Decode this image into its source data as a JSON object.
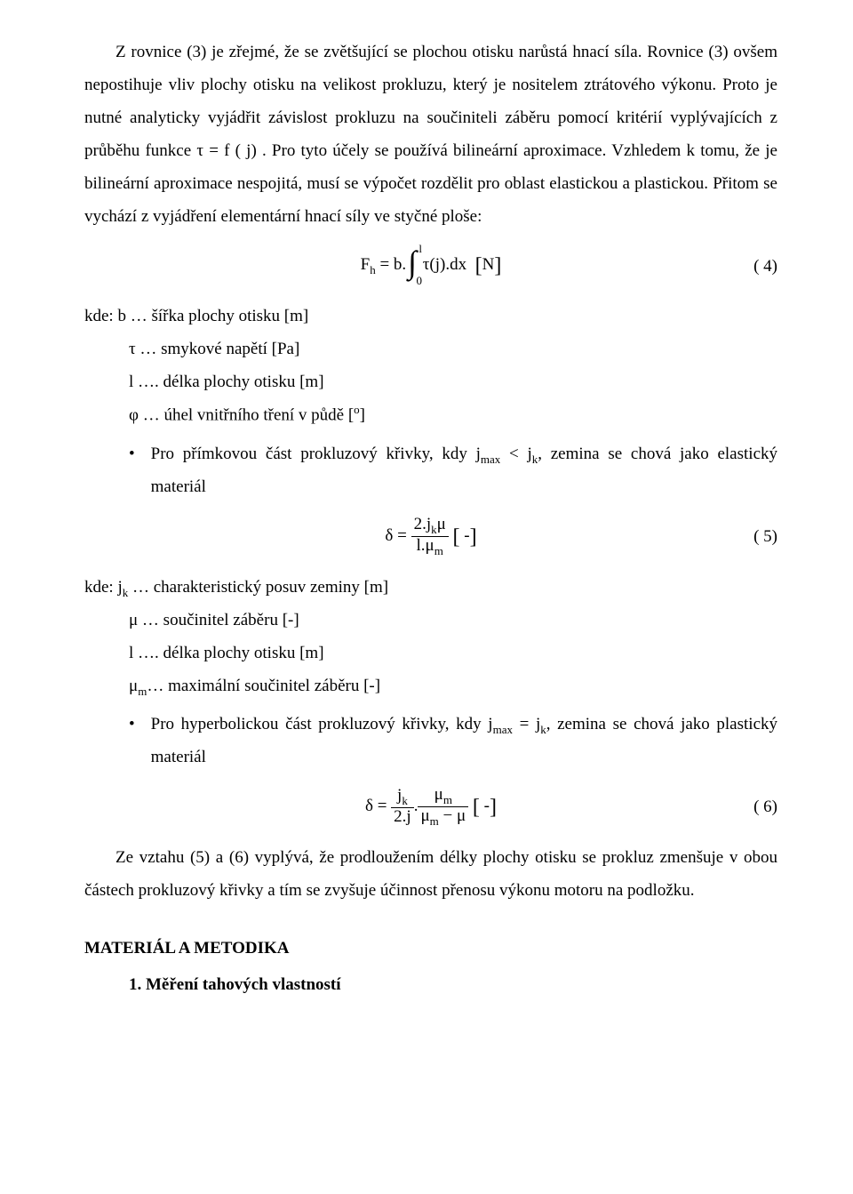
{
  "para1": "Z rovnice (3) je zřejmé, že se zvětšující se plochou otisku narůstá hnací síla. Rovnice (3) ovšem nepostihuje vliv plochy otisku na velikost prokluzu, který je nositelem ztrátového výkonu. Proto je nutné analyticky vyjádřit závislost prokluzu na součiniteli záběru pomocí kritérií vyplývajících z průběhu funkce τ = f ( j) . Pro tyto účely se používá bilineární aproximace. Vzhledem k tomu, že je bilineární aproximace nespojitá, musí se výpočet rozdělit pro oblast elastickou a plastickou. Přitom se vychází z vyjádření elementární hnací síly ve styčné ploše:",
  "eq4_left": "F",
  "eq4_sub": "h",
  "eq4_eq": " = b.",
  "eq4_int_upper": "l",
  "eq4_int_lower": "0",
  "eq4_after_int": "τ(j).dx ",
  "eq4_unit": "N",
  "eq4_num": "( 4)",
  "var_b": "kde: b … šířka plochy otisku [m]",
  "var_tau": "τ … smykové napětí [Pa]",
  "var_l": "l …. délka plochy otisku [m]",
  "var_phi": "φ … úhel vnitřního tření v půdě [",
  "var_phi_sup": "o",
  "var_phi_end": "]",
  "bullet1_start": "Pro přímkovou část prokluzový křivky, kdy j",
  "bullet1_sub1": "max",
  "bullet1_mid": " < j",
  "bullet1_sub2": "k",
  "bullet1_end": ", zemina se chová jako elastický materiál",
  "eq5_delta": "δ = ",
  "eq5_num_top": "2.j",
  "eq5_num_sub": "k",
  "eq5_num_end": "μ",
  "eq5_den_start": "l.μ",
  "eq5_den_sub": "m",
  "eq5_unit": " -",
  "eq5_num": "( 5)",
  "var_jk": "kde: j",
  "var_jk_sub": "k",
  "var_jk_end": " … charakteristický posuv zeminy [m]",
  "var_mu": "μ … součinitel záběru [-]",
  "var_l2": "l …. délka plochy otisku [m]",
  "var_mum": "μ",
  "var_mum_sub": "m",
  "var_mum_end": "… maximální součinitel záběru [-]",
  "bullet2_start": "Pro hyperbolickou část prokluzový křivky, kdy j",
  "bullet2_sub1": "max",
  "bullet2_mid": " = j",
  "bullet2_sub2": "k",
  "bullet2_end": ", zemina se chová jako plastický materiál",
  "eq6_delta": "δ = ",
  "eq6_f1_num": "j",
  "eq6_f1_num_sub": "k",
  "eq6_f1_den": "2.j",
  "eq6_dot": ".",
  "eq6_f2_num": "μ",
  "eq6_f2_num_sub": "m",
  "eq6_f2_den_a": "μ",
  "eq6_f2_den_sub": "m",
  "eq6_f2_den_b": " − μ",
  "eq6_unit": " -",
  "eq6_num": "( 6)",
  "para2": "Ze vztahu (5) a (6) vyplývá, že prodloužením délky plochy otisku se prokluz zmenšuje v obou částech prokluzový křivky a tím se zvyšuje účinnost přenosu výkonu motoru na podložku.",
  "heading": "MATERIÁL A METODIKA",
  "subheading": "1.  Měření tahových vlastností"
}
